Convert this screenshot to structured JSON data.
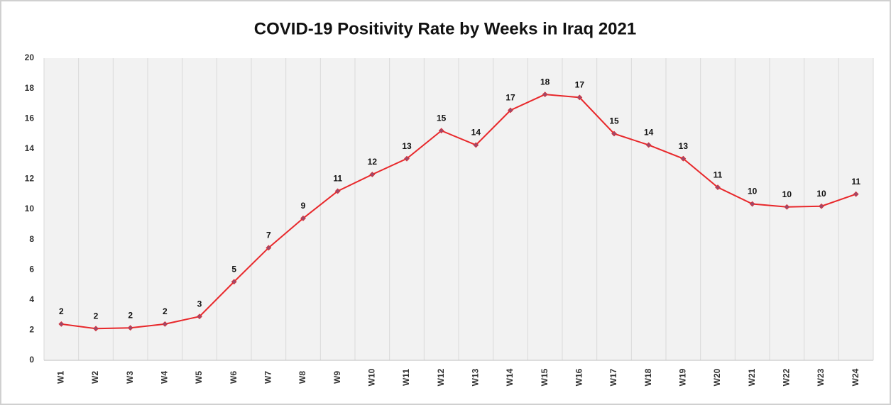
{
  "chart_data": {
    "type": "line",
    "title": "COVID-19 Positivity Rate by Weeks in Iraq 2021",
    "categories": [
      "W1",
      "W2",
      "W3",
      "W4",
      "W5",
      "W6",
      "W7",
      "W8",
      "W9",
      "W10",
      "W11",
      "W12",
      "W13",
      "W14",
      "W15",
      "W16",
      "W17",
      "W18",
      "W19",
      "W20",
      "W21",
      "W22",
      "W23",
      "W24"
    ],
    "series": [
      {
        "name": "Positivity Rate",
        "color": "#e8282b",
        "marker_color": "#9e4a6a",
        "values": [
          2.4,
          2.1,
          2.15,
          2.4,
          2.9,
          5.2,
          7.45,
          9.4,
          11.2,
          12.3,
          13.35,
          15.2,
          14.25,
          16.55,
          17.6,
          17.4,
          15.0,
          14.25,
          13.35,
          11.45,
          10.35,
          10.15,
          10.2,
          11.0
        ],
        "value_labels": [
          "2",
          "2",
          "2",
          "2",
          "3",
          "5",
          "7",
          "9",
          "11",
          "12",
          "13",
          "15",
          "14",
          "17",
          "18",
          "17",
          "15",
          "14",
          "13",
          "11",
          "10",
          "10",
          "10",
          "11"
        ]
      }
    ],
    "ylim": [
      0,
      20
    ],
    "yticks": [
      0,
      2,
      4,
      6,
      8,
      10,
      12,
      14,
      16,
      18,
      20
    ],
    "grid": "x"
  }
}
